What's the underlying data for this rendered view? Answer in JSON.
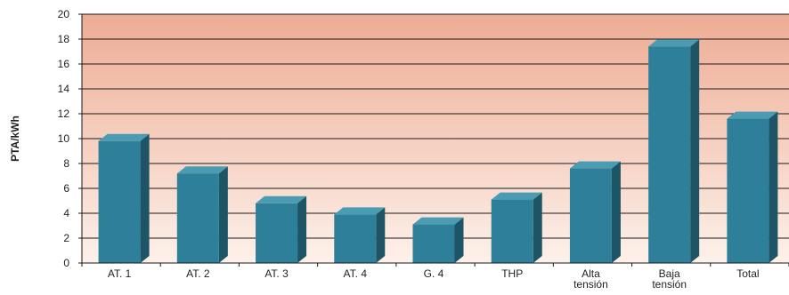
{
  "chart_data": {
    "type": "bar",
    "categories": [
      "AT. 1",
      "AT. 2",
      "AT. 3",
      "AT. 4",
      "G. 4",
      "THP",
      "Alta tensión",
      "Baja tensión",
      "Total"
    ],
    "values": [
      9.8,
      7.2,
      4.8,
      3.9,
      3.1,
      5.1,
      7.6,
      17.4,
      11.6
    ],
    "ylabel": "PTA/kWh",
    "ylim": [
      0,
      20
    ],
    "yticks": [
      0,
      2,
      4,
      6,
      8,
      10,
      12,
      14,
      16,
      18,
      20
    ],
    "grid": true,
    "colors": {
      "bar_front": "#2e7f99",
      "bar_top": "#4b9bb3",
      "bar_side": "#1d5466",
      "bg_top": "#eeac94",
      "bg_bottom": "#fdf1ea"
    }
  }
}
